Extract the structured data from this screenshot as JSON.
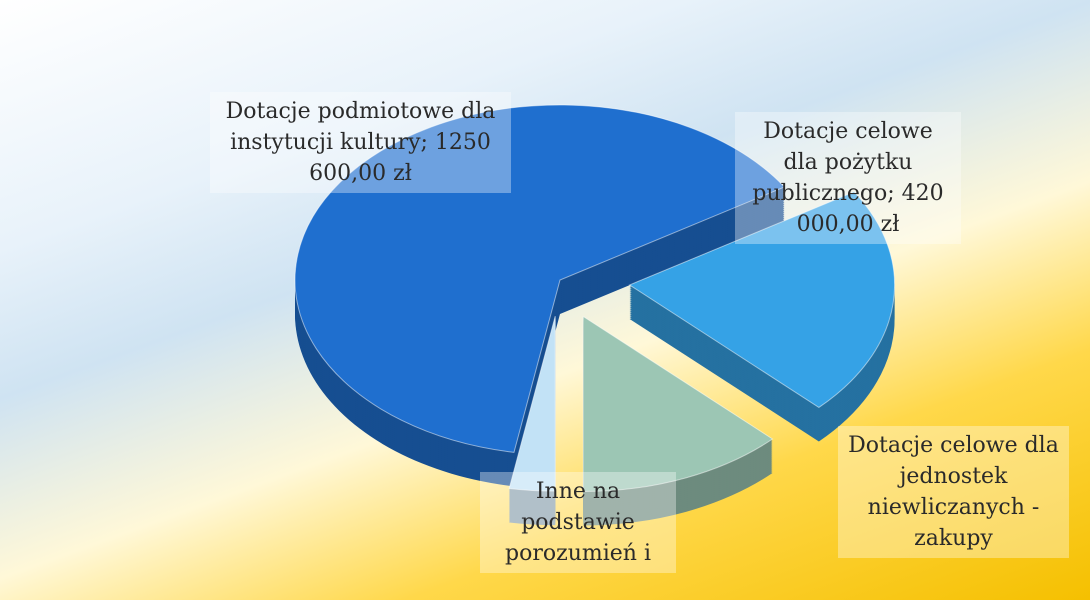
{
  "chart_data": {
    "type": "pie",
    "value_labels": [
      "Dotacje podmiotowe dla instytucji kultury; 1250 600,00 zł",
      "Dotacje celowe dla pożytku publicznego; 420 000,00 zł",
      "Dotacje celowe dla jednostek niewliczanych - zakupy",
      "Inne na podstawie porozumień i"
    ],
    "values": [
      1250600,
      420000,
      250000,
      55000
    ],
    "colors": [
      "#1f6fcf",
      "#35a2e6",
      "#9cc6b4",
      "#c2e2f6"
    ]
  }
}
